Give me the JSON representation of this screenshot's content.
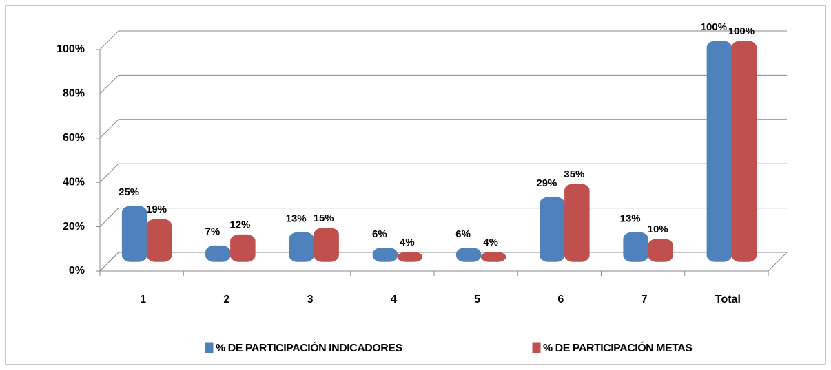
{
  "chart_data": {
    "type": "bar",
    "categories": [
      "1",
      "2",
      "3",
      "4",
      "5",
      "6",
      "7",
      "Total"
    ],
    "series": [
      {
        "name": "% DE PARTICIPACIÓN INDICADORES",
        "color": "#4f81bd",
        "values": [
          25,
          7,
          13,
          6,
          6,
          29,
          13,
          100
        ],
        "value_labels": [
          "25%",
          "7%",
          "13%",
          "6%",
          "6%",
          "29%",
          "13%",
          "100%"
        ]
      },
      {
        "name": "% DE PARTICIPACIÓN METAS",
        "color": "#c0504d",
        "values": [
          19,
          12,
          15,
          4,
          4,
          35,
          10,
          100
        ],
        "value_labels": [
          "19%",
          "12%",
          "15%",
          "4%",
          "4%",
          "35%",
          "10%",
          "100%"
        ]
      }
    ],
    "ylim": [
      0,
      100
    ],
    "yticks": [
      {
        "value": 0,
        "label": "0%"
      },
      {
        "value": 20,
        "label": "20%"
      },
      {
        "value": 40,
        "label": "40%"
      },
      {
        "value": 60,
        "label": "60%"
      },
      {
        "value": 80,
        "label": "80%"
      },
      {
        "value": 100,
        "label": "100%"
      }
    ],
    "grid": true,
    "legend": "bottom"
  }
}
